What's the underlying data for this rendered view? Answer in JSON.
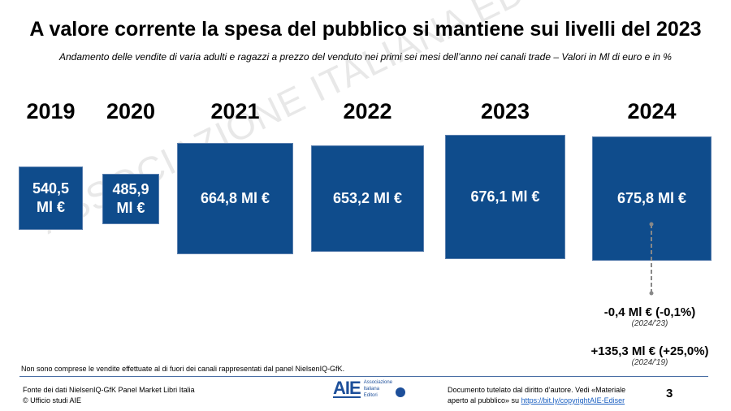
{
  "title": "A valore corrente la spesa del pubblico si mantiene sui livelli del 2023",
  "subtitle": "Andamento delle vendite di varia adulti e ragazzi a prezzo del venduto nei primi sei mesi dell’anno nei canali trade – Valori in Ml di euro e in %",
  "watermark": "ASSOCIAZIONE ITALIANA EDITORI",
  "chart_data": {
    "type": "bar",
    "categories": [
      "2019",
      "2020",
      "2021",
      "2022",
      "2023",
      "2024"
    ],
    "values": [
      540.5,
      485.9,
      664.8,
      653.2,
      676.1,
      675.8
    ],
    "labels": [
      "540,5 Ml €",
      "485,9 Ml €",
      "664,8 Ml €",
      "653,2 Ml €",
      "676,1 Ml €",
      "675,8 Ml €"
    ],
    "bar_color": "#0f4c8c"
  },
  "deltas": [
    {
      "value": "-0,4 Ml € (-0,1%)",
      "period": "(2024/'23)"
    },
    {
      "value": "+135,3 Ml € (+25,0%)",
      "period": "(2024/'19)"
    }
  ],
  "note": "Non sono comprese le vendite effettuate al di fuori dei canali rappresentati dal panel NielsenIQ-GfK.",
  "footer": {
    "source_line1": "Fonte dei dati NielsenIQ-GfK Panel Market Libri Italia",
    "source_line2": "© Ufficio studi AIE",
    "logo_text": "AIE",
    "logo_sub": [
      "Associazione",
      "Italiana",
      "Editori"
    ],
    "copyright_text": "Documento tutelato dal diritto d’autore. Vedi «Materiale aperto al pubblico» su ",
    "copyright_link": "https://bit.ly/copyrightAIE-Ediser",
    "page_number": "3"
  }
}
